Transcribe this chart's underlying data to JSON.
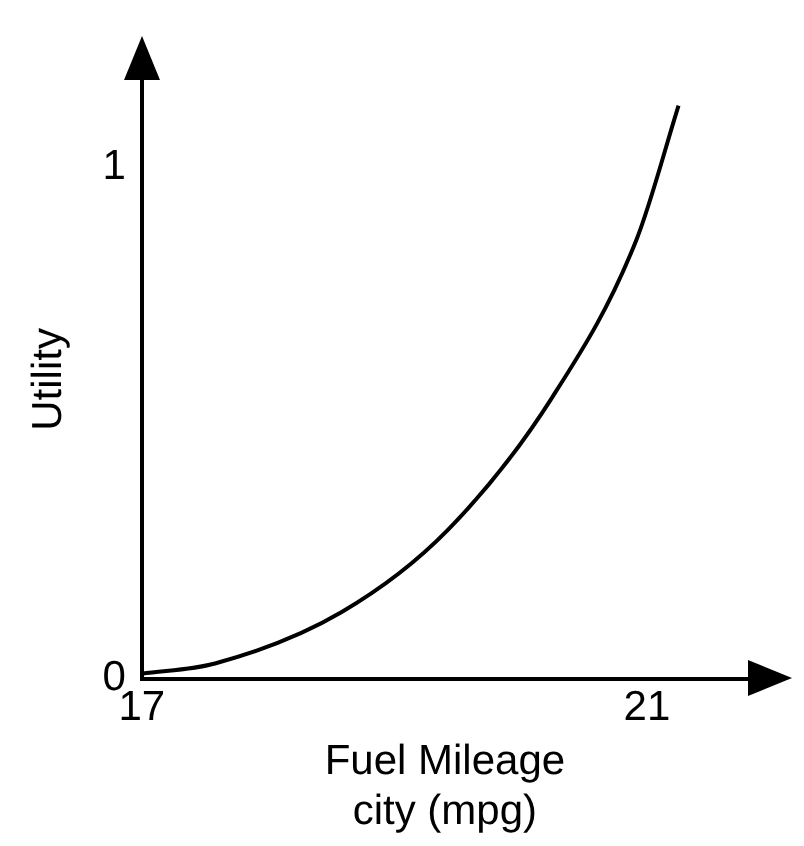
{
  "chart_data": {
    "type": "line",
    "xlabel": "Fuel Mileage\ncity (mpg)",
    "ylabel": "Utility",
    "x": [
      17,
      17.58,
      18.58,
      19.42,
      20.25,
      20.92,
      21.25
    ],
    "series": [
      {
        "color": "#000000",
        "values": [
          0.01,
          0.03,
          0.13,
          0.29,
          0.55,
          0.86,
          1.12
        ]
      }
    ],
    "xlim": [
      17,
      21.8
    ],
    "xticks": [
      17,
      21
    ],
    "ylim": [
      0,
      1.17
    ],
    "yticks": [
      0,
      1
    ],
    "grid": false,
    "legend": false,
    "marker": "none",
    "line_style": "solid"
  }
}
